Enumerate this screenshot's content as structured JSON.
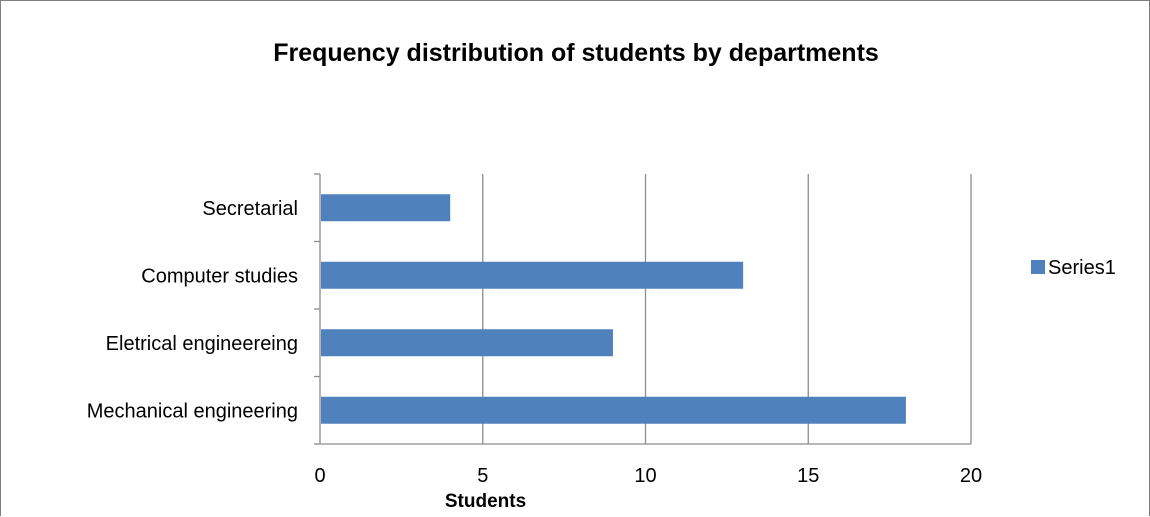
{
  "chart_data": {
    "type": "bar",
    "orientation": "horizontal",
    "title": "Frequency distribution of students by departments",
    "xlabel": "Students",
    "ylabel": "",
    "categories": [
      "Mechanical engineering",
      "Eletrical engineereing",
      "Computer studies",
      "Secretarial"
    ],
    "series": [
      {
        "name": "Series1",
        "values": [
          18,
          9,
          13,
          4
        ],
        "color": "#4f81bd"
      }
    ],
    "xlim": [
      0,
      20
    ],
    "xticks": [
      0,
      5,
      10,
      15,
      20
    ],
    "grid": "vertical",
    "legend_position": "right"
  }
}
